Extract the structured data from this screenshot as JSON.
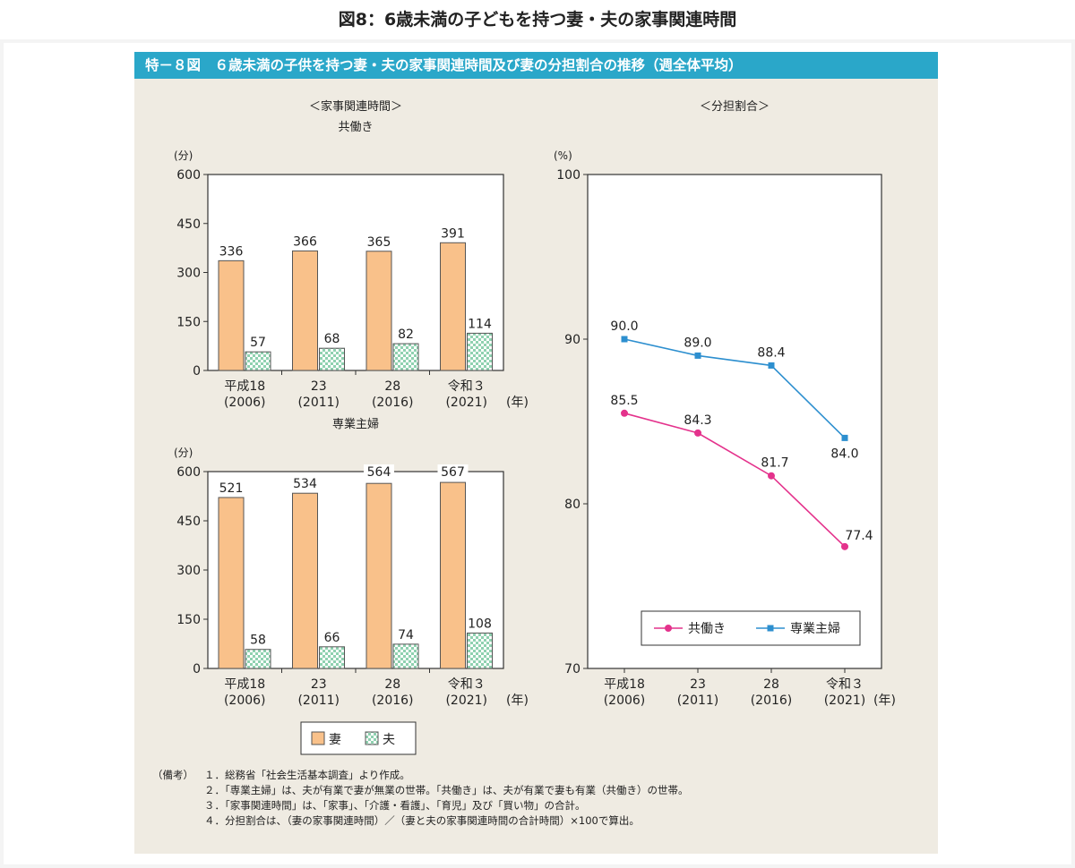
{
  "page_title": "図8：6歳未満の子どもを持つ妻・夫の家事関連時間",
  "figure_header": "特－８図　６歳未満の子供を持つ妻・夫の家事関連時間及び妻の分担割合の推移（週全体平均）",
  "left_section_title": "＜家事関連時間＞",
  "right_section_title": "＜分担割合＞",
  "colors": {
    "header": "#2aa7c9",
    "wife_bar": "#f9c18a",
    "husband_bar": "#c7ead8",
    "tomobataraki_line": "#e4328c",
    "sengyo_line": "#2d8fcf",
    "panel_bg": "#efebe2"
  },
  "chart_data": [
    {
      "type": "bar",
      "title": "共働き",
      "ylabel": "(分)",
      "xunit": "(年)",
      "ylim": [
        0,
        600
      ],
      "yticks": [
        0,
        150,
        300,
        450,
        600
      ],
      "categories": [
        {
          "line1": "平成18",
          "line2": "(2006)"
        },
        {
          "line1": "23",
          "line2": "(2011)"
        },
        {
          "line1": "28",
          "line2": "(2016)"
        },
        {
          "line1": "令和３",
          "line2": "(2021)"
        }
      ],
      "series": [
        {
          "name": "妻",
          "values": [
            336,
            366,
            365,
            391
          ]
        },
        {
          "name": "夫",
          "values": [
            57,
            68,
            82,
            114
          ]
        }
      ]
    },
    {
      "type": "bar",
      "title": "専業主婦",
      "ylabel": "(分)",
      "xunit": "(年)",
      "ylim": [
        0,
        600
      ],
      "yticks": [
        0,
        150,
        300,
        450,
        600
      ],
      "categories": [
        {
          "line1": "平成18",
          "line2": "(2006)"
        },
        {
          "line1": "23",
          "line2": "(2011)"
        },
        {
          "line1": "28",
          "line2": "(2016)"
        },
        {
          "line1": "令和３",
          "line2": "(2021)"
        }
      ],
      "series": [
        {
          "name": "妻",
          "values": [
            521,
            534,
            564,
            567
          ]
        },
        {
          "name": "夫",
          "values": [
            58,
            66,
            74,
            108
          ]
        }
      ],
      "legend": [
        "妻",
        "夫"
      ]
    },
    {
      "type": "line",
      "ylabel": "(%)",
      "xunit": "(年)",
      "ylim": [
        70,
        100
      ],
      "yticks": [
        70,
        80,
        90,
        100
      ],
      "categories": [
        {
          "line1": "平成18",
          "line2": "(2006)"
        },
        {
          "line1": "23",
          "line2": "(2011)"
        },
        {
          "line1": "28",
          "line2": "(2016)"
        },
        {
          "line1": "令和３",
          "line2": "(2021)"
        }
      ],
      "series": [
        {
          "name": "共働き",
          "values": [
            85.5,
            84.3,
            81.7,
            77.4
          ]
        },
        {
          "name": "専業主婦",
          "values": [
            90.0,
            89.0,
            88.4,
            84.0
          ]
        }
      ],
      "legend": [
        "共働き",
        "専業主婦"
      ]
    }
  ],
  "notes": {
    "head": "（備考）",
    "items": [
      "１．総務省「社会生活基本調査」より作成。",
      "２．「専業主婦」は、夫が有業で妻が無業の世帯。「共働き」は、夫が有業で妻も有業（共働き）の世帯。",
      "３．「家事関連時間」は、「家事」、「介護・看護」、「育児」及び「買い物」の合計。",
      "４．分担割合は、（妻の家事関連時間）／（妻と夫の家事関連時間の合計時間）×100で算出。"
    ]
  }
}
